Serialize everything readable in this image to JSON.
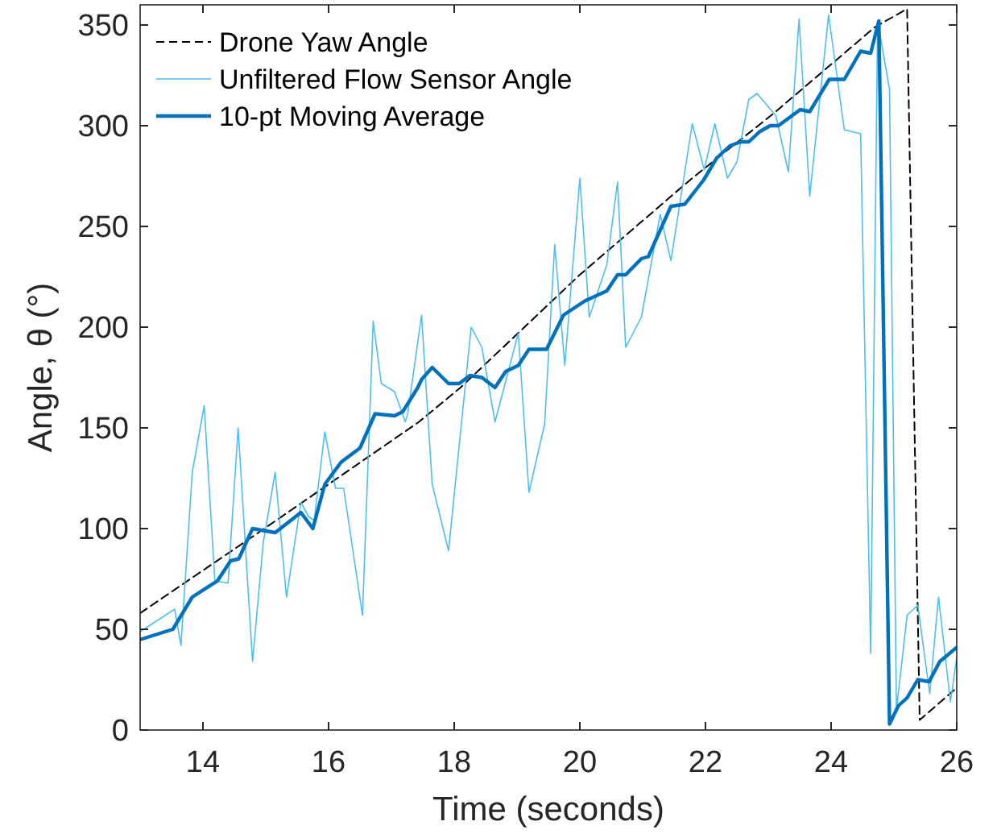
{
  "chart_data": {
    "type": "line",
    "xlabel": "Time (seconds)",
    "ylabel": "Angle, θ (°)",
    "xlim": [
      13,
      26
    ],
    "ylim": [
      0,
      360
    ],
    "xticks": [
      14,
      16,
      18,
      20,
      22,
      24,
      26
    ],
    "yticks": [
      0,
      50,
      100,
      150,
      200,
      250,
      300,
      350
    ],
    "legend": "top left",
    "grid": false,
    "marker": "none",
    "series": [
      {
        "name": "Drone Yaw Angle",
        "color": "#000000",
        "line_style": "dashed",
        "x": [
          13,
          14.79,
          16,
          17.44,
          18.1,
          20,
          21.79,
          23.08,
          24.7,
          25.21,
          25.41,
          26
        ],
        "values": [
          58,
          96,
          122,
          153,
          170,
          226,
          274,
          306,
          349,
          358,
          5,
          21
        ]
      },
      {
        "name": "Unfiltered Flow Sensor Angle",
        "color": "#4dbeee",
        "line_style": "solid",
        "x": [
          13.01,
          13.55,
          13.65,
          13.83,
          14.02,
          14.19,
          14.4,
          14.56,
          14.79,
          14.96,
          15.15,
          15.33,
          15.56,
          15.68,
          15.77,
          15.94,
          16.11,
          16.24,
          16.54,
          16.71,
          16.84,
          17.05,
          17.22,
          17.26,
          17.48,
          17.65,
          17.91,
          18.27,
          18.44,
          18.65,
          19.02,
          19.19,
          19.44,
          19.6,
          19.76,
          20.0,
          20.15,
          20.43,
          20.6,
          20.73,
          20.98,
          21.28,
          21.45,
          21.79,
          21.98,
          22.15,
          22.35,
          22.5,
          22.69,
          22.82,
          23.12,
          23.32,
          23.49,
          23.66,
          23.96,
          24.21,
          24.47,
          24.63,
          24.74,
          24.93,
          25.04,
          25.21,
          25.38,
          25.57,
          25.71,
          25.9,
          26.0
        ],
        "values": [
          49,
          60,
          42,
          128,
          161,
          74,
          73,
          150,
          34,
          93,
          128,
          66,
          113,
          106,
          104,
          148,
          120,
          120,
          57,
          203,
          172,
          168,
          153,
          157,
          206,
          122,
          89,
          200,
          190,
          153,
          197,
          118,
          152,
          241,
          181,
          274,
          205,
          231,
          272,
          190,
          205,
          256,
          233,
          301,
          278,
          301,
          274,
          282,
          313,
          316,
          305,
          277,
          353,
          265,
          355,
          298,
          296,
          38,
          352,
          318,
          10,
          57,
          62,
          18,
          66,
          14,
          36
        ]
      },
      {
        "name": "10-pt Moving Average",
        "color": "#0072bd",
        "line_style": "solid",
        "x": [
          13.01,
          13.52,
          13.83,
          14.23,
          14.44,
          14.57,
          14.79,
          15.15,
          15.56,
          15.75,
          15.94,
          16.2,
          16.5,
          16.74,
          17.05,
          17.18,
          17.42,
          17.48,
          17.65,
          17.91,
          18.08,
          18.25,
          18.44,
          18.65,
          18.82,
          19.02,
          19.19,
          19.47,
          19.74,
          20.08,
          20.43,
          20.6,
          20.73,
          20.98,
          21.09,
          21.45,
          21.67,
          21.97,
          22.18,
          22.39,
          22.56,
          22.69,
          22.86,
          23.03,
          23.16,
          23.51,
          23.66,
          23.97,
          24.21,
          24.47,
          24.63,
          24.76,
          24.93,
          25.07,
          25.21,
          25.38,
          25.56,
          25.73,
          26.0
        ],
        "values": [
          45,
          50,
          66,
          74,
          84,
          85,
          100,
          98,
          108,
          100,
          122,
          133,
          140,
          157,
          156,
          158,
          170,
          174,
          180,
          172,
          172,
          176,
          175,
          170,
          178,
          181,
          189,
          189,
          206,
          213,
          218,
          226,
          226,
          234,
          235,
          260,
          261,
          273,
          284,
          290,
          292,
          292,
          297,
          300,
          300,
          308,
          307,
          323,
          323,
          337,
          336,
          352,
          3,
          12,
          16,
          25,
          24,
          34,
          41
        ]
      }
    ]
  }
}
